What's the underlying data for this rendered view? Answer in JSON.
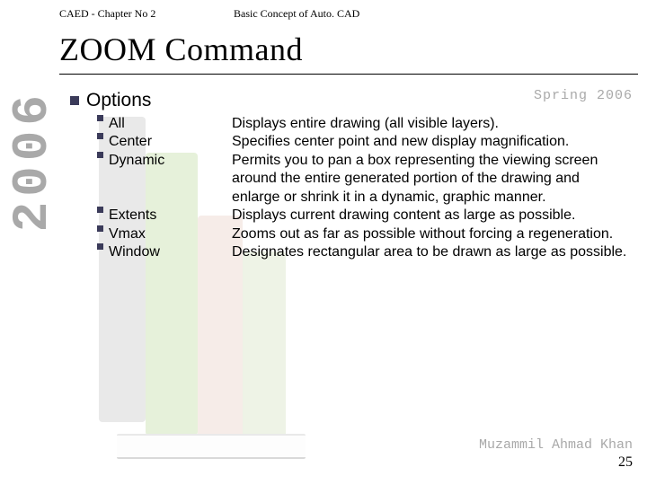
{
  "colors": {
    "bullet": "#3b3b5a",
    "gray_text": "#a9a9a9",
    "background": "#ffffff",
    "book_spines": [
      "#e9e9e9",
      "#e6f1da",
      "#f6ece8",
      "#eef3e6"
    ]
  },
  "fonts": {
    "header": "Times New Roman",
    "title": "Times New Roman",
    "body": "Arial",
    "mono": "Courier New",
    "title_size_pt": 36,
    "body_size_pt": 16,
    "header_size_pt": 12,
    "mono_size_pt": 15,
    "side_year_size_pt": 56
  },
  "header": {
    "left": "CAED - Chapter No 2",
    "mid": "Basic Concept of Auto. CAD"
  },
  "title": "ZOOM Command",
  "side_year": "2006",
  "semester_label": "Spring 2006",
  "options_label": "Options",
  "options": [
    {
      "name": "All",
      "desc": "Displays entire drawing (all visible layers)."
    },
    {
      "name": "Center",
      "desc": "Specifies center point and new display magnification."
    },
    {
      "name": "Dynamic",
      "desc": "Permits you to pan a box representing the viewing screen around the entire generated portion of the drawing and enlarge or shrink it in a dynamic, graphic manner."
    },
    {
      "name": "Extents",
      "desc": "Displays current drawing content as large as possible."
    },
    {
      "name": "Vmax",
      "desc": "Zooms out as far as possible without forcing a regeneration."
    },
    {
      "name": "Window",
      "desc": "Designates rectangular area to be drawn as large as possible."
    }
  ],
  "footer": {
    "author": "Muzammil Ahmad Khan",
    "page_number": "25"
  }
}
